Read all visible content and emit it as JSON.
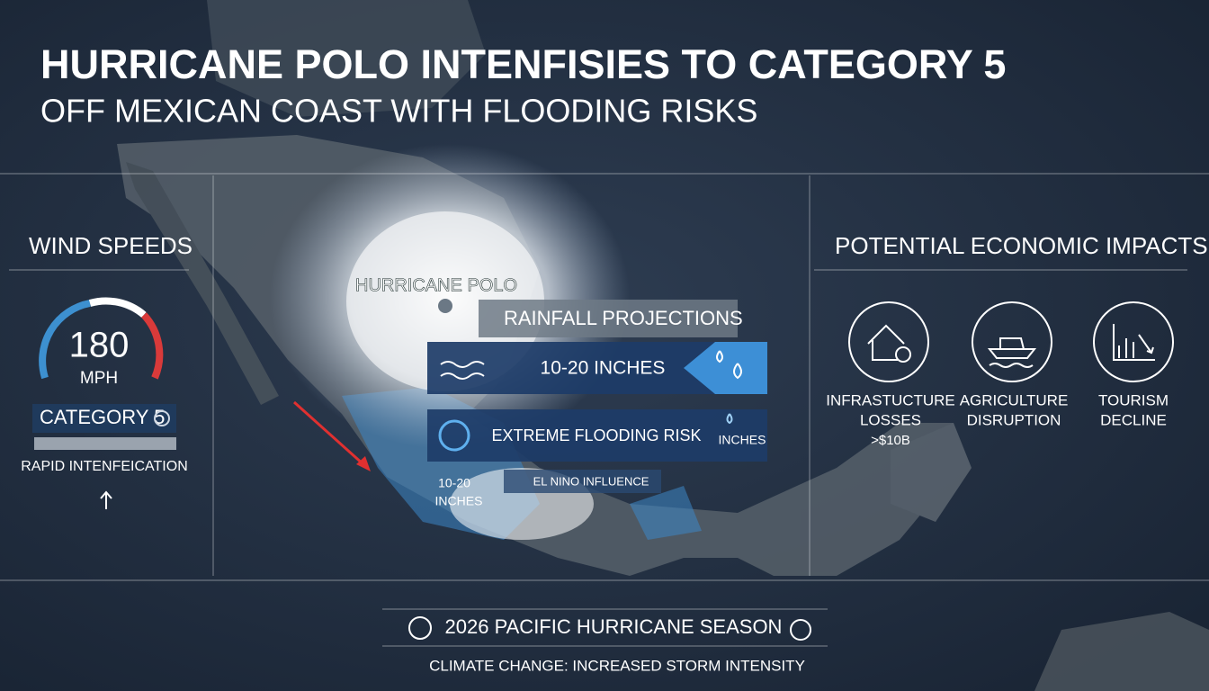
{
  "header": {
    "title": "HURRICANE POLO INTENFISIES TO CATEGORY 5",
    "subtitle": "OFF MEXICAN COAST WITH FLOODING RISKS"
  },
  "wind": {
    "heading": "WIND SPEEDS",
    "speed": "180",
    "unit": "MPH",
    "category": "CATEGORY 5",
    "note": "RAPID INTENFEICATION"
  },
  "map": {
    "storm_label": "HURRICANE POLO",
    "rainfall": {
      "title": "RAINFALL PROJECTIONS",
      "rows": [
        {
          "text": "10-20 INCHES"
        },
        {
          "text": "EXTREME FLOODING RISK",
          "unit": "INCHES"
        }
      ]
    },
    "coast_label": [
      "10-20",
      "INCHES"
    ],
    "el_nino": "EL NINO INFLUENCE"
  },
  "economy": {
    "heading": "POTENTIAL ECONOMIC IMPACTS",
    "items": [
      {
        "label": [
          "INFRASTUCTURE",
          "LOSSES",
          ">$10B"
        ]
      },
      {
        "label": [
          "AGRICULTURE",
          "DISRUPTION"
        ]
      },
      {
        "label": [
          "TOURISM",
          "DECLINE"
        ]
      }
    ]
  },
  "footer": {
    "title": "2026 PACIFIC HURRICANE SEASON",
    "note": "CLIMATE CHANGE: INCREASED STORM INTENSITY"
  }
}
